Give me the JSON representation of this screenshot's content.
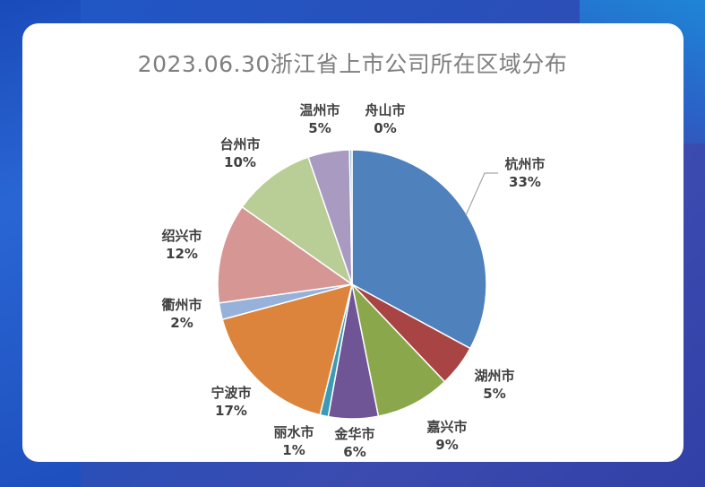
{
  "chart_data": {
    "type": "pie",
    "title": "2023.06.30浙江省上市公司所在区域分布",
    "start_angle_deg": 0,
    "slices": [
      {
        "label": "杭州市",
        "value": 33,
        "display": "33%",
        "color": "#4f81bd"
      },
      {
        "label": "湖州市",
        "value": 5,
        "display": "5%",
        "color": "#a84444"
      },
      {
        "label": "嘉兴市",
        "value": 9,
        "display": "9%",
        "color": "#8aa84b"
      },
      {
        "label": "金华市",
        "value": 6,
        "display": "6%",
        "color": "#6f5596"
      },
      {
        "label": "丽水市",
        "value": 1,
        "display": "1%",
        "color": "#3b9bb5"
      },
      {
        "label": "宁波市",
        "value": 17,
        "display": "17%",
        "color": "#dc843c"
      },
      {
        "label": "衢州市",
        "value": 2,
        "display": "2%",
        "color": "#96b1da"
      },
      {
        "label": "绍兴市",
        "value": 12,
        "display": "12%",
        "color": "#d69694"
      },
      {
        "label": "台州市",
        "value": 10,
        "display": "10%",
        "color": "#b9cd96"
      },
      {
        "label": "温州市",
        "value": 5,
        "display": "5%",
        "color": "#a99ac1"
      },
      {
        "label": "舟山市",
        "value": 0.3,
        "display": "0%",
        "color": "#94c6d4"
      }
    ]
  }
}
